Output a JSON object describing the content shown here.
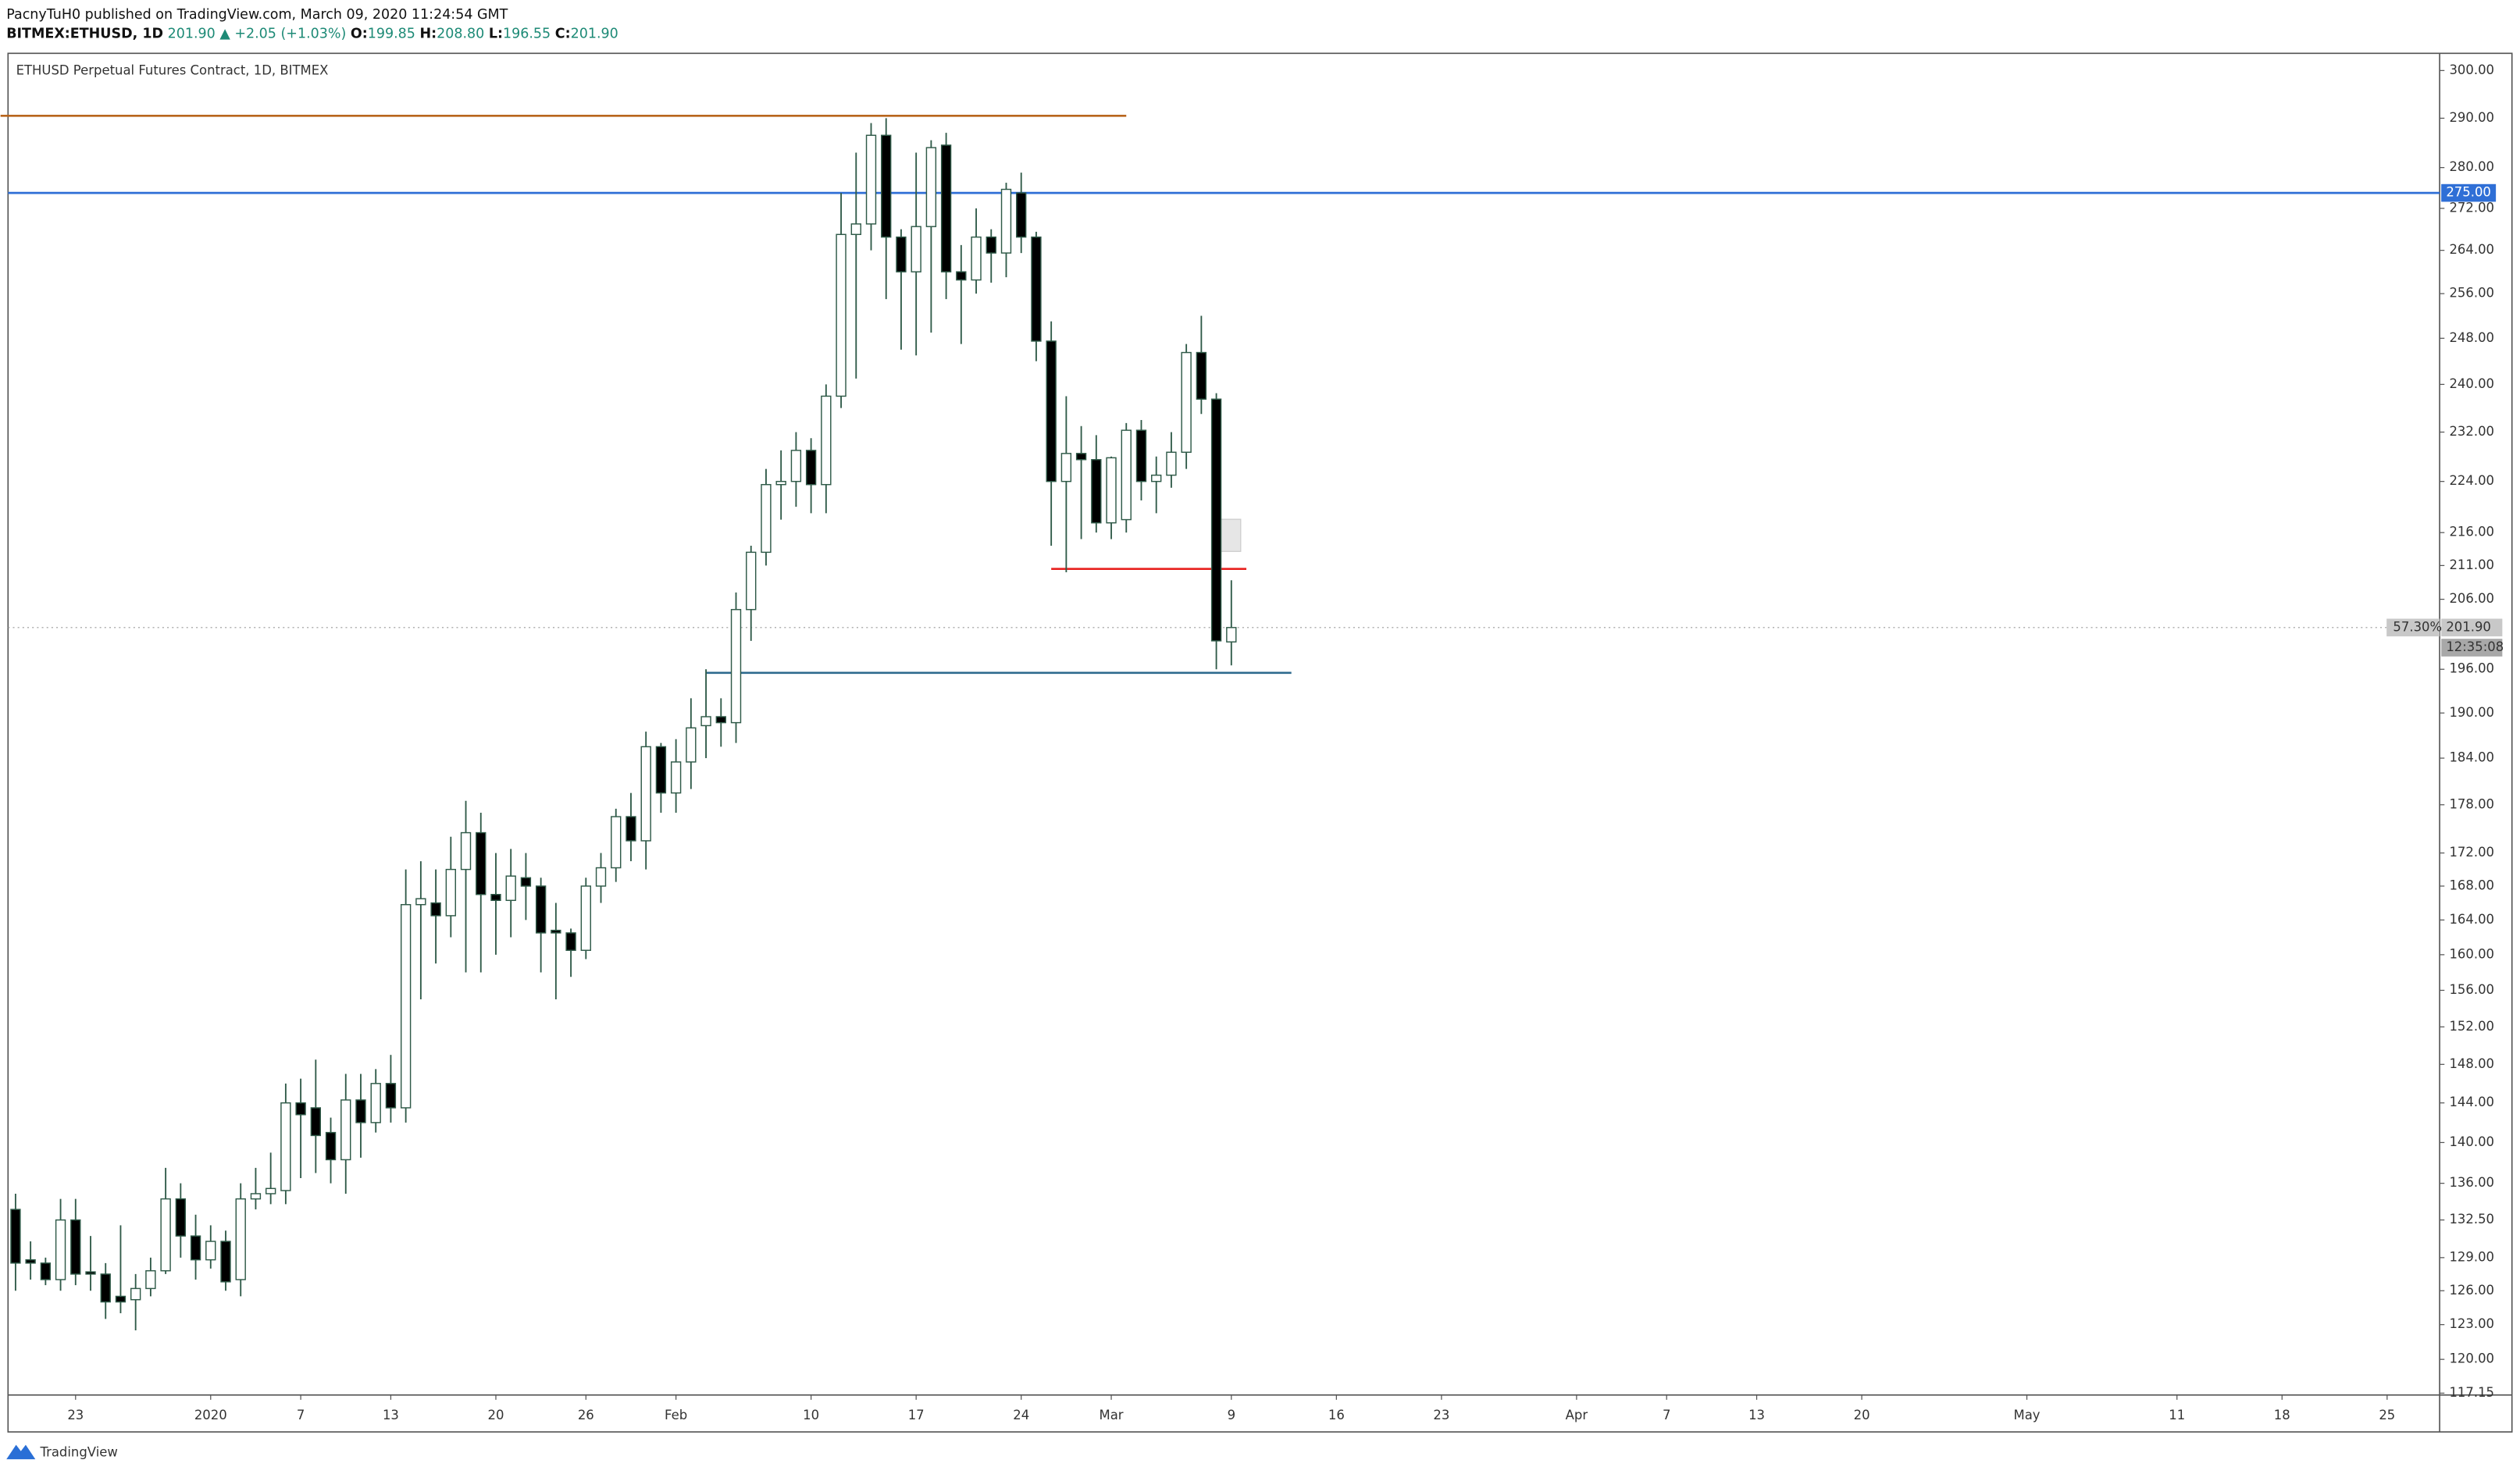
{
  "header": {
    "published": "PacnyTuH0 published on TradingView.com, March 09, 2020 11:24:54 GMT",
    "symbol": "BITMEX:ETHUSD, 1D",
    "price": "201.90",
    "change": "▲ +2.05 (+1.03%)",
    "o_label": "O:",
    "o": "199.85",
    "h_label": "H:",
    "h": "208.80",
    "l_label": "L:",
    "l": "196.55",
    "c_label": "C:",
    "c": "201.90"
  },
  "footer": {
    "brand": "TradingView"
  },
  "chart_data": {
    "type": "candlestick",
    "title": "ETHUSD Perpetual Futures Contract, 1D, BITMEX",
    "log_scale": true,
    "up_color": "#ffffff",
    "down_color": "#000000",
    "wick_color": "#2f5a48",
    "x": [
      "2019-12-19",
      "2019-12-20",
      "2019-12-21",
      "2019-12-22",
      "2019-12-23",
      "2019-12-24",
      "2019-12-25",
      "2019-12-26",
      "2019-12-27",
      "2019-12-28",
      "2019-12-29",
      "2019-12-30",
      "2019-12-31",
      "2020-01-01",
      "2020-01-02",
      "2020-01-03",
      "2020-01-04",
      "2020-01-05",
      "2020-01-06",
      "2020-01-07",
      "2020-01-08",
      "2020-01-09",
      "2020-01-10",
      "2020-01-11",
      "2020-01-12",
      "2020-01-13",
      "2020-01-14",
      "2020-01-15",
      "2020-01-16",
      "2020-01-17",
      "2020-01-18",
      "2020-01-19",
      "2020-01-20",
      "2020-01-21",
      "2020-01-22",
      "2020-01-23",
      "2020-01-24",
      "2020-01-25",
      "2020-01-26",
      "2020-01-27",
      "2020-01-28",
      "2020-01-29",
      "2020-01-30",
      "2020-01-31",
      "2020-02-01",
      "2020-02-02",
      "2020-02-03",
      "2020-02-04",
      "2020-02-05",
      "2020-02-06",
      "2020-02-07",
      "2020-02-08",
      "2020-02-09",
      "2020-02-10",
      "2020-02-11",
      "2020-02-12",
      "2020-02-13",
      "2020-02-14",
      "2020-02-15",
      "2020-02-16",
      "2020-02-17",
      "2020-02-18",
      "2020-02-19",
      "2020-02-20",
      "2020-02-21",
      "2020-02-22",
      "2020-02-23",
      "2020-02-24",
      "2020-02-25",
      "2020-02-26",
      "2020-02-27",
      "2020-02-28",
      "2020-02-29",
      "2020-03-01",
      "2020-03-02",
      "2020-03-03",
      "2020-03-04",
      "2020-03-05",
      "2020-03-06",
      "2020-03-07",
      "2020-03-08",
      "2020-03-09"
    ],
    "open": [
      133.5,
      128.8,
      128.5,
      127,
      132.5,
      127.7,
      127.5,
      125.5,
      125.2,
      126.2,
      127.8,
      134.5,
      131,
      128.8,
      130.5,
      127,
      134.5,
      135,
      135.3,
      144,
      143.5,
      141,
      138.3,
      144.3,
      142,
      146,
      143.5,
      165.8,
      166,
      164.5,
      170,
      174.5,
      167,
      166.3,
      169,
      168,
      162.8,
      162.5,
      160.5,
      168,
      170.2,
      176.5,
      173.5,
      185.5,
      179.5,
      183.5,
      188.3,
      189.5,
      188.7,
      204.5,
      213,
      223.5,
      224,
      229,
      223.5,
      238,
      267,
      269,
      286.5,
      266.5,
      260,
      268.5,
      284.5,
      260,
      258.5,
      266.5,
      263.5,
      275,
      266.5,
      247.5,
      224,
      228.5,
      227.5,
      217.5,
      218,
      232.3,
      224,
      225,
      228.7,
      245.5,
      237.5,
      199.85
    ],
    "high": [
      135,
      130.5,
      129,
      134.5,
      134.5,
      131,
      128.5,
      132,
      127.5,
      129,
      137.5,
      136,
      133,
      132,
      131.5,
      136,
      137.5,
      139,
      146,
      146.5,
      148.5,
      142.5,
      147,
      147,
      147.5,
      149,
      170,
      171,
      170,
      174,
      178.5,
      177,
      172,
      172.5,
      172,
      169,
      166,
      163,
      169,
      172,
      177.5,
      179.5,
      187.5,
      186,
      186.5,
      192,
      196,
      192,
      207,
      214,
      226,
      229,
      232,
      231,
      240,
      275,
      283,
      289,
      290,
      268,
      283,
      285.5,
      287,
      265,
      272,
      268,
      277,
      279,
      267.5,
      251,
      238,
      233,
      231.5,
      228,
      233.5,
      234,
      228,
      232,
      247,
      252,
      238.5,
      208.8
    ],
    "low": [
      126,
      127,
      126.5,
      126,
      126.5,
      126,
      123.5,
      124,
      122.5,
      125.5,
      127.5,
      129,
      127,
      128,
      126,
      125.5,
      133.5,
      134,
      134,
      136.5,
      137,
      136,
      135,
      138.5,
      141,
      142,
      142,
      155,
      159,
      162,
      158,
      158,
      160,
      162,
      164,
      158,
      155,
      157.5,
      159.5,
      166,
      168.5,
      171,
      170,
      177,
      177,
      180,
      184,
      185.5,
      186,
      200,
      211,
      218,
      220,
      219,
      219,
      236,
      241,
      264,
      255,
      246,
      245,
      249,
      255,
      247,
      256,
      258,
      259,
      263.5,
      244,
      214,
      210,
      215,
      216,
      215,
      216,
      221,
      219,
      223,
      226,
      235,
      196,
      196.55
    ],
    "close": [
      128.5,
      128.5,
      127,
      132.5,
      127.5,
      127.5,
      125,
      125,
      126.2,
      127.8,
      134.5,
      131,
      128.8,
      130.5,
      126.8,
      134.5,
      135,
      135.5,
      144,
      142.8,
      140.7,
      138.3,
      144.3,
      142,
      146,
      143.5,
      165.8,
      166.5,
      164.5,
      170,
      174.5,
      167,
      166.3,
      169.2,
      168,
      162.5,
      162.5,
      160.5,
      168,
      170.2,
      176.5,
      173.5,
      185.5,
      179.5,
      183.5,
      188,
      189.5,
      188.7,
      204.5,
      213,
      223.5,
      224,
      229,
      223.5,
      238,
      267,
      269,
      286.5,
      266.5,
      260,
      268.5,
      284,
      260,
      258.5,
      266.5,
      263.5,
      275.7,
      266.5,
      247.5,
      224,
      228.5,
      227.5,
      217.5,
      227.8,
      232.3,
      224,
      225,
      228.7,
      245.5,
      237.5,
      200,
      201.9
    ],
    "xlim": [
      "2019-12-19",
      "2020-05-28"
    ],
    "xticks": [
      {
        "value": "2019-12-23",
        "label": "23"
      },
      {
        "value": "2020-01-01",
        "label": "2020"
      },
      {
        "value": "2020-01-07",
        "label": "7"
      },
      {
        "value": "2020-01-13",
        "label": "13"
      },
      {
        "value": "2020-01-20",
        "label": "20"
      },
      {
        "value": "2020-01-26",
        "label": "26"
      },
      {
        "value": "2020-02-01",
        "label": "Feb"
      },
      {
        "value": "2020-02-10",
        "label": "10"
      },
      {
        "value": "2020-02-17",
        "label": "17"
      },
      {
        "value": "2020-02-24",
        "label": "24"
      },
      {
        "value": "2020-03-01",
        "label": "Mar"
      },
      {
        "value": "2020-03-09",
        "label": "9"
      },
      {
        "value": "2020-03-16",
        "label": "16"
      },
      {
        "value": "2020-03-23",
        "label": "23"
      },
      {
        "value": "2020-04-01",
        "label": "Apr"
      },
      {
        "value": "2020-04-07",
        "label": "7"
      },
      {
        "value": "2020-04-13",
        "label": "13"
      },
      {
        "value": "2020-04-20",
        "label": "20"
      },
      {
        "value": "2020-05-01",
        "label": "May"
      },
      {
        "value": "2020-05-11",
        "label": "11"
      },
      {
        "value": "2020-05-18",
        "label": "18"
      },
      {
        "value": "2020-05-25",
        "label": "25"
      }
    ],
    "ylim": [
      117,
      303
    ],
    "yticks": [
      {
        "value": 300,
        "label": "300.00"
      },
      {
        "value": 290,
        "label": "290.00"
      },
      {
        "value": 280,
        "label": "280.00"
      },
      {
        "value": 272,
        "label": "272.00"
      },
      {
        "value": 264,
        "label": "264.00"
      },
      {
        "value": 256,
        "label": "256.00"
      },
      {
        "value": 248,
        "label": "248.00"
      },
      {
        "value": 240,
        "label": "240.00"
      },
      {
        "value": 232,
        "label": "232.00"
      },
      {
        "value": 224,
        "label": "224.00"
      },
      {
        "value": 216,
        "label": "216.00"
      },
      {
        "value": 211,
        "label": "211.00"
      },
      {
        "value": 206,
        "label": "206.00"
      },
      {
        "value": 196,
        "label": "196.00"
      },
      {
        "value": 190,
        "label": "190.00"
      },
      {
        "value": 184,
        "label": "184.00"
      },
      {
        "value": 178,
        "label": "178.00"
      },
      {
        "value": 172,
        "label": "172.00"
      },
      {
        "value": 168,
        "label": "168.00"
      },
      {
        "value": 164,
        "label": "164.00"
      },
      {
        "value": 160,
        "label": "160.00"
      },
      {
        "value": 156,
        "label": "156.00"
      },
      {
        "value": 152,
        "label": "152.00"
      },
      {
        "value": 148,
        "label": "148.00"
      },
      {
        "value": 144,
        "label": "144.00"
      },
      {
        "value": 140,
        "label": "140.00"
      },
      {
        "value": 136,
        "label": "136.00"
      },
      {
        "value": 132.5,
        "label": "132.50"
      },
      {
        "value": 129,
        "label": "129.00"
      },
      {
        "value": 126,
        "label": "126.00"
      },
      {
        "value": 123,
        "label": "123.00"
      },
      {
        "value": 120,
        "label": "120.00"
      },
      {
        "value": 117.15,
        "label": "117.15"
      }
    ],
    "hlines": [
      {
        "value": 290.5,
        "color": "#b8651c",
        "x": [
          "2019-12-18",
          "2020-03-02"
        ]
      },
      {
        "value": 275,
        "color": "#2f6fd6",
        "label": "275.00"
      },
      {
        "value": 210.5,
        "color": "#e8201e",
        "x": [
          "2020-02-26",
          "2020-03-10"
        ]
      },
      {
        "value": 195.5,
        "color": "#2e6a8e",
        "x": [
          "2020-02-03",
          "2020-03-13"
        ]
      }
    ],
    "last_price": {
      "value": 201.9,
      "label": "201.90",
      "percent": "57.30%",
      "countdown": "12:35:08"
    }
  }
}
